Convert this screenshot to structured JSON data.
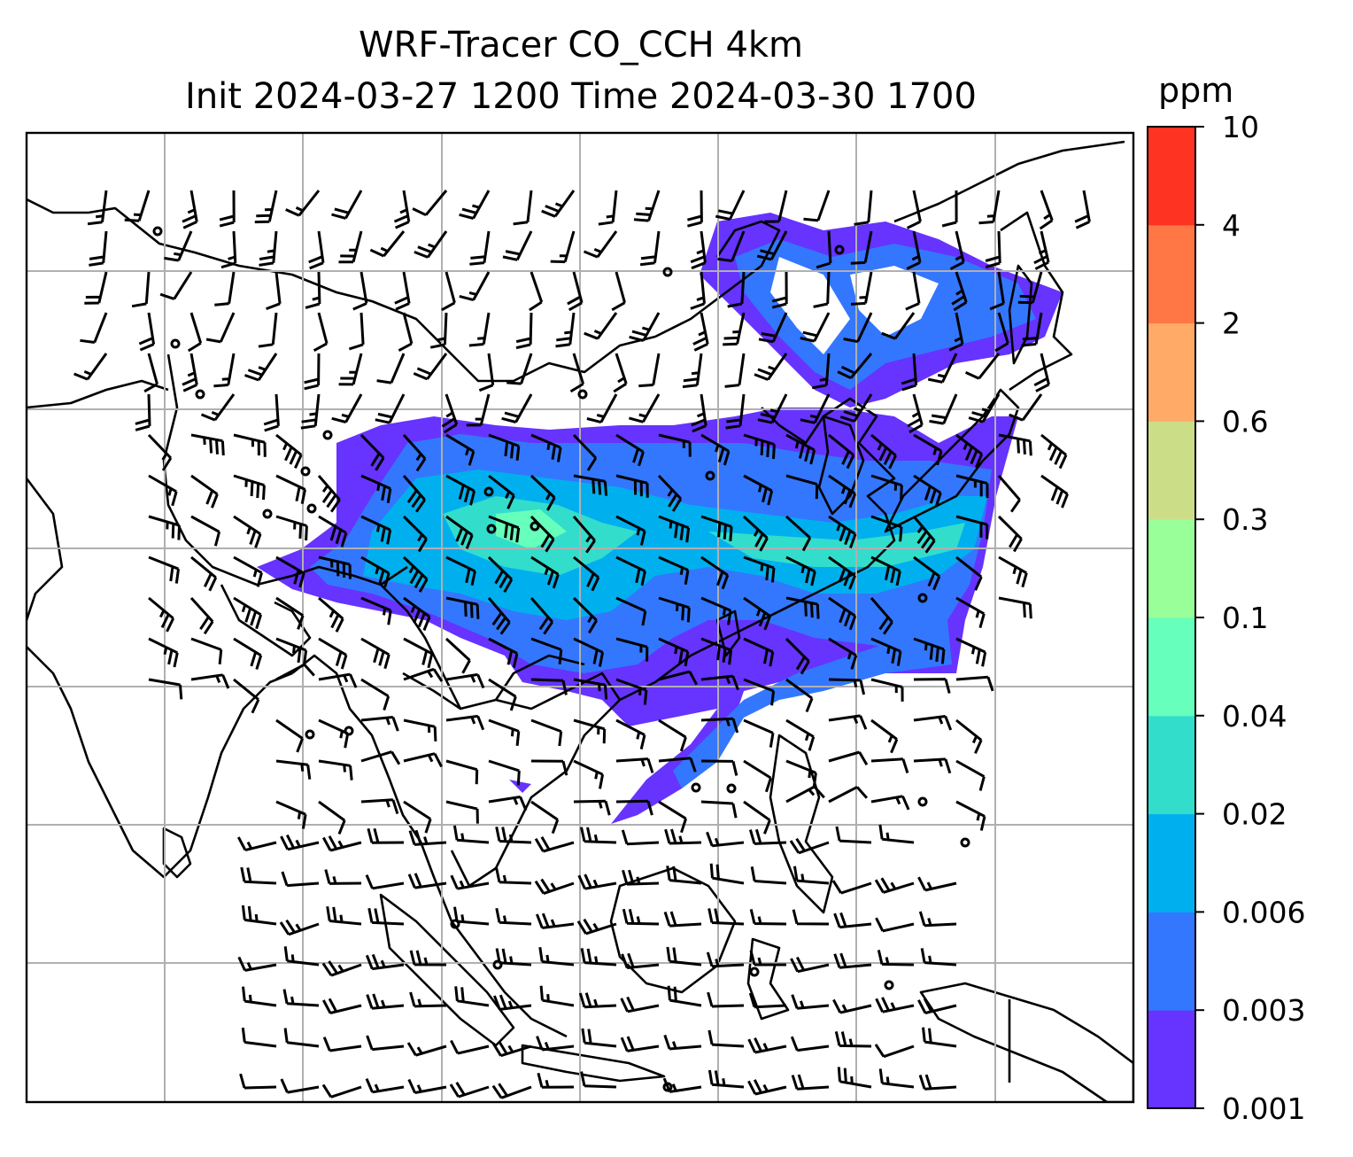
{
  "title": {
    "line1": "WRF-Tracer CO_CCH 4km",
    "line2": "Init 2024-03-27 1200 Time 2024-03-30 1700"
  },
  "colorbar": {
    "unit": "ppm",
    "levels": [
      "0.001",
      "0.003",
      "0.006",
      "0.02",
      "0.04",
      "0.1",
      "0.3",
      "0.6",
      "2",
      "4",
      "10"
    ],
    "colors": [
      "#6633ff",
      "#3377ff",
      "#00b0ee",
      "#33ddcc",
      "#66ffbb",
      "#99ff99",
      "#ccdd88",
      "#ffaa66",
      "#ff7744",
      "#ff3322"
    ]
  },
  "map": {
    "plume_colors": {
      "outer": "#6633ff",
      "mid": "#3377ff",
      "inner": "#00b0ee",
      "core": "#33ddcc",
      "peak": "#66ffbb"
    },
    "grid_color": "#b0b0b0",
    "coast_color": "#000000"
  }
}
